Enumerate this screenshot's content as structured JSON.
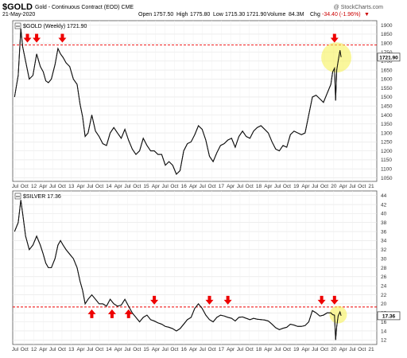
{
  "header": {
    "symbol": "$GOLD",
    "name": "Gold - Continuous Contract (EOD)  CME",
    "date": "21-May-2020",
    "open_label": "Open",
    "open": "1757.50",
    "high_label": "High",
    "high": "1775.80",
    "low_label": "Low",
    "low": "1715.30",
    "close": "1721.90",
    "volume_label": "Volume",
    "volume": "84.3M",
    "chg_label": "Chg",
    "chg": "-34.40 (-1.96%)",
    "watermark": "@ StockCharts.com"
  },
  "chart_data": [
    {
      "type": "line",
      "legend": "$GOLD (Weekly) 1721.90",
      "last_value_label": "1721.90",
      "x_tick_labels": [
        "Jul",
        "Oct",
        "12",
        "Apr",
        "Jul",
        "Oct",
        "13",
        "Apr",
        "Jul",
        "Oct",
        "14",
        "Apr",
        "Jul",
        "Oct",
        "15",
        "Apr",
        "Jul",
        "Oct",
        "16",
        "Apr",
        "Jul",
        "Oct",
        "17",
        "Apr",
        "Jul",
        "Oct",
        "18",
        "Apr",
        "Jul",
        "Oct",
        "19",
        "Apr",
        "Jul",
        "Oct",
        "20",
        "Apr",
        "Jul",
        "Oct",
        "21"
      ],
      "y_ticks": [
        1050,
        1100,
        1150,
        1200,
        1250,
        1300,
        1350,
        1400,
        1450,
        1500,
        1550,
        1600,
        1650,
        1700,
        1750,
        1800,
        1850,
        1900
      ],
      "ylim": [
        1030,
        1925
      ],
      "resistance_level": 1790,
      "x": [
        2011.5,
        2011.6,
        2011.67,
        2011.72,
        2011.8,
        2011.9,
        2012.0,
        2012.1,
        2012.2,
        2012.28,
        2012.35,
        2012.42,
        2012.5,
        2012.6,
        2012.68,
        2012.75,
        2012.82,
        2012.9,
        2013.0,
        2013.1,
        2013.2,
        2013.28,
        2013.35,
        2013.42,
        2013.5,
        2013.6,
        2013.7,
        2013.8,
        2013.9,
        2014.0,
        2014.1,
        2014.2,
        2014.3,
        2014.4,
        2014.5,
        2014.6,
        2014.7,
        2014.8,
        2014.9,
        2015.0,
        2015.1,
        2015.2,
        2015.3,
        2015.4,
        2015.5,
        2015.6,
        2015.7,
        2015.8,
        2015.9,
        2016.0,
        2016.1,
        2016.2,
        2016.3,
        2016.4,
        2016.5,
        2016.6,
        2016.7,
        2016.8,
        2016.9,
        2017.0,
        2017.1,
        2017.2,
        2017.3,
        2017.4,
        2017.5,
        2017.6,
        2017.7,
        2017.8,
        2017.9,
        2018.0,
        2018.1,
        2018.2,
        2018.3,
        2018.4,
        2018.5,
        2018.6,
        2018.7,
        2018.8,
        2018.9,
        2019.0,
        2019.1,
        2019.2,
        2019.3,
        2019.4,
        2019.5,
        2019.6,
        2019.7,
        2019.8,
        2019.9,
        2020.0,
        2020.1,
        2020.15,
        2020.2,
        2020.23,
        2020.26,
        2020.3,
        2020.35,
        2020.38
      ],
      "y": [
        1500,
        1620,
        1880,
        1780,
        1700,
        1600,
        1620,
        1740,
        1670,
        1640,
        1590,
        1580,
        1600,
        1680,
        1770,
        1740,
        1720,
        1690,
        1670,
        1600,
        1570,
        1460,
        1390,
        1280,
        1300,
        1400,
        1310,
        1280,
        1240,
        1230,
        1300,
        1330,
        1300,
        1270,
        1320,
        1260,
        1210,
        1180,
        1200,
        1270,
        1230,
        1200,
        1200,
        1180,
        1180,
        1120,
        1140,
        1120,
        1070,
        1090,
        1200,
        1240,
        1250,
        1290,
        1340,
        1320,
        1260,
        1170,
        1140,
        1190,
        1230,
        1240,
        1260,
        1270,
        1220,
        1280,
        1310,
        1280,
        1270,
        1310,
        1330,
        1340,
        1320,
        1300,
        1250,
        1210,
        1200,
        1230,
        1220,
        1290,
        1310,
        1300,
        1290,
        1300,
        1400,
        1500,
        1510,
        1490,
        1470,
        1520,
        1570,
        1640,
        1660,
        1480,
        1650,
        1700,
        1760,
        1722
      ]
    },
    {
      "type": "line",
      "legend": "$SILVER 17.36",
      "last_value_label": "17.36",
      "x_tick_labels": [
        "Jul",
        "Oct",
        "12",
        "Apr",
        "Jul",
        "Oct",
        "13",
        "Apr",
        "Jul",
        "Oct",
        "14",
        "Apr",
        "Jul",
        "Oct",
        "15",
        "Apr",
        "Jul",
        "Oct",
        "16",
        "Apr",
        "Jul",
        "Oct",
        "17",
        "Apr",
        "Jul",
        "Oct",
        "18",
        "Apr",
        "Jul",
        "Oct",
        "19",
        "Apr",
        "Jul",
        "Oct",
        "20",
        "Apr",
        "Jul",
        "Oct",
        "21"
      ],
      "y_ticks": [
        12,
        14,
        16,
        18,
        20,
        22,
        24,
        26,
        28,
        30,
        32,
        34,
        36,
        38,
        40,
        42,
        44
      ],
      "ylim": [
        11,
        45
      ],
      "resistance_level": 19.3,
      "x": [
        2011.5,
        2011.6,
        2011.67,
        2011.72,
        2011.8,
        2011.9,
        2012.0,
        2012.1,
        2012.2,
        2012.28,
        2012.35,
        2012.42,
        2012.5,
        2012.6,
        2012.68,
        2012.75,
        2012.82,
        2012.9,
        2013.0,
        2013.1,
        2013.2,
        2013.28,
        2013.35,
        2013.42,
        2013.5,
        2013.6,
        2013.7,
        2013.8,
        2013.9,
        2014.0,
        2014.1,
        2014.2,
        2014.3,
        2014.4,
        2014.5,
        2014.6,
        2014.7,
        2014.8,
        2014.9,
        2015.0,
        2015.1,
        2015.2,
        2015.3,
        2015.4,
        2015.5,
        2015.6,
        2015.7,
        2015.8,
        2015.9,
        2016.0,
        2016.1,
        2016.2,
        2016.3,
        2016.4,
        2016.5,
        2016.6,
        2016.7,
        2016.8,
        2016.9,
        2017.0,
        2017.1,
        2017.2,
        2017.3,
        2017.4,
        2017.5,
        2017.6,
        2017.7,
        2017.8,
        2017.9,
        2018.0,
        2018.1,
        2018.2,
        2018.3,
        2018.4,
        2018.5,
        2018.6,
        2018.7,
        2018.8,
        2018.9,
        2019.0,
        2019.1,
        2019.2,
        2019.3,
        2019.4,
        2019.5,
        2019.6,
        2019.7,
        2019.8,
        2019.9,
        2020.0,
        2020.1,
        2020.15,
        2020.2,
        2020.23,
        2020.26,
        2020.3,
        2020.35,
        2020.38
      ],
      "y": [
        36,
        38,
        43,
        40,
        35,
        32,
        33,
        35,
        33,
        31,
        29,
        28,
        28,
        30,
        33,
        34,
        33,
        32,
        31,
        30,
        28,
        25,
        23,
        20,
        21,
        22,
        21,
        20,
        20,
        19.5,
        21,
        20,
        19.5,
        19.7,
        21,
        19.5,
        18,
        17,
        16,
        17,
        17.5,
        16.5,
        16.2,
        15.8,
        15.5,
        15,
        14.8,
        14.5,
        14,
        14.5,
        15.5,
        16.5,
        17,
        19,
        20,
        19,
        17.5,
        16.5,
        16,
        17,
        17.5,
        17.3,
        17,
        16.8,
        16.2,
        17,
        17.1,
        16.8,
        16.5,
        16.8,
        16.6,
        16.5,
        16.4,
        16.2,
        15.5,
        14.7,
        14.3,
        14.6,
        14.8,
        15.5,
        15.3,
        15,
        15,
        15.2,
        16,
        18.5,
        18,
        17.3,
        17.5,
        18,
        18,
        17.6,
        17.5,
        12,
        15,
        17.3,
        18.2,
        17.36
      ]
    }
  ]
}
